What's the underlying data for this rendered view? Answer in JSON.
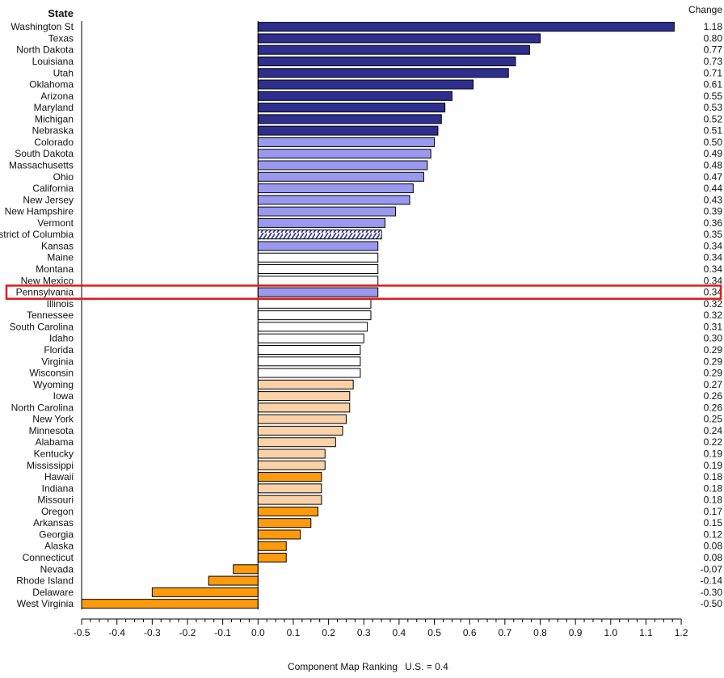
{
  "chart_data": {
    "type": "bar",
    "orientation": "horizontal",
    "row_header": "State",
    "value_header": "Change",
    "footer_left": "Component Map Ranking",
    "footer_right": "U.S. = 0.4",
    "xlim": [
      -0.5,
      1.2
    ],
    "x_ticks": [
      "-0.5",
      "-0.4",
      "-0.3",
      "-0.2",
      "-0.1",
      "0.0",
      "0.1",
      "0.2",
      "0.3",
      "0.4",
      "0.5",
      "0.6",
      "0.7",
      "0.8",
      "0.9",
      "1.0",
      "1.1",
      "1.2"
    ],
    "grid": false,
    "highlighted_category": "Pennsylvania",
    "highlight_color": "#e01b1b",
    "colors": {
      "dark_blue": "#2e2e8f",
      "light_blue": "#9999f0",
      "white": "#ffffff",
      "peach": "#fbd2a7",
      "orange": "#ff9a0d",
      "outline": "#000000",
      "hatch": "#3b3b9a"
    },
    "categories": [
      "Washington St",
      "Texas",
      "North Dakota",
      "Louisiana",
      "Utah",
      "Oklahoma",
      "Arizona",
      "Maryland",
      "Michigan",
      "Nebraska",
      "Colorado",
      "South Dakota",
      "Massachusetts",
      "Ohio",
      "California",
      "New Jersey",
      "New Hampshire",
      "Vermont",
      "District of Columbia",
      "Kansas",
      "Maine",
      "Montana",
      "New Mexico",
      "Pennsylvania",
      "Illinois",
      "Tennessee",
      "South Carolina",
      "Idaho",
      "Florida",
      "Virginia",
      "Wisconsin",
      "Wyoming",
      "Iowa",
      "North Carolina",
      "New York",
      "Minnesota",
      "Alabama",
      "Kentucky",
      "Mississippi",
      "Hawaii",
      "Indiana",
      "Missouri",
      "Oregon",
      "Arkansas",
      "Georgia",
      "Alaska",
      "Connecticut",
      "Nevada",
      "Rhode Island",
      "Delaware",
      "West Virginia"
    ],
    "values": [
      1.18,
      0.8,
      0.77,
      0.73,
      0.71,
      0.61,
      0.55,
      0.53,
      0.52,
      0.51,
      0.5,
      0.49,
      0.48,
      0.47,
      0.44,
      0.43,
      0.39,
      0.36,
      0.35,
      0.34,
      0.34,
      0.34,
      0.34,
      0.34,
      0.32,
      0.32,
      0.31,
      0.3,
      0.29,
      0.29,
      0.29,
      0.27,
      0.26,
      0.26,
      0.25,
      0.24,
      0.22,
      0.19,
      0.19,
      0.18,
      0.18,
      0.18,
      0.17,
      0.15,
      0.12,
      0.08,
      0.08,
      -0.07,
      -0.14,
      -0.3,
      -0.5
    ],
    "value_labels": [
      "1.18",
      "0.80",
      "0.77",
      "0.73",
      "0.71",
      "0.61",
      "0.55",
      "0.53",
      "0.52",
      "0.51",
      "0.50",
      "0.49",
      "0.48",
      "0.47",
      "0.44",
      "0.43",
      "0.39",
      "0.36",
      "0.35",
      "0.34",
      "0.34",
      "0.34",
      "0.34",
      "0.34",
      "0.32",
      "0.32",
      "0.31",
      "0.30",
      "0.29",
      "0.29",
      "0.29",
      "0.27",
      "0.26",
      "0.26",
      "0.25",
      "0.24",
      "0.22",
      "0.19",
      "0.19",
      "0.18",
      "0.18",
      "0.18",
      "0.17",
      "0.15",
      "0.12",
      "0.08",
      "0.08",
      "-0.07",
      "-0.14",
      "-0.30",
      "-0.50"
    ],
    "fill_keys": [
      "dark_blue",
      "dark_blue",
      "dark_blue",
      "dark_blue",
      "dark_blue",
      "dark_blue",
      "dark_blue",
      "dark_blue",
      "dark_blue",
      "dark_blue",
      "light_blue",
      "light_blue",
      "light_blue",
      "light_blue",
      "light_blue",
      "light_blue",
      "light_blue",
      "light_blue",
      "hatch",
      "light_blue",
      "white",
      "white",
      "white",
      "light_blue",
      "white",
      "white",
      "white",
      "white",
      "white",
      "white",
      "white",
      "peach",
      "peach",
      "peach",
      "peach",
      "peach",
      "peach",
      "peach",
      "peach",
      "orange",
      "peach",
      "peach",
      "orange",
      "orange",
      "orange",
      "orange",
      "orange",
      "orange",
      "orange",
      "orange",
      "orange"
    ]
  }
}
